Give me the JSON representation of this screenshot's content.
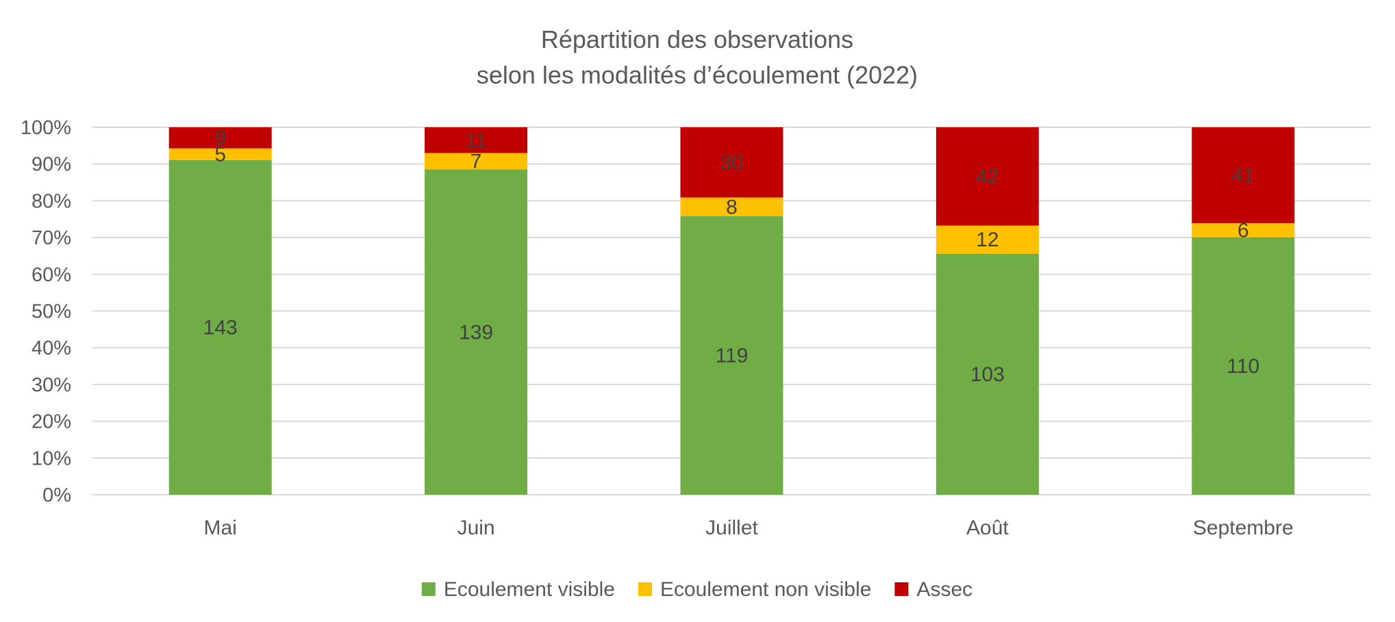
{
  "chart_data": {
    "type": "bar",
    "stacked": "percent",
    "title_lines": [
      "Répartition des observations",
      "selon les modalités d’écoulement (2022)"
    ],
    "categories": [
      "Mai",
      "Juin",
      "Juillet",
      "Août",
      "Septembre"
    ],
    "series": [
      {
        "name": "Ecoulement visible",
        "color": "#70ad47",
        "values": [
          143,
          139,
          119,
          103,
          110
        ]
      },
      {
        "name": "Ecoulement non visible",
        "color": "#ffc000",
        "values": [
          5,
          7,
          8,
          12,
          6
        ]
      },
      {
        "name": "Assec",
        "color": "#c00000",
        "values": [
          9,
          11,
          30,
          42,
          41
        ]
      }
    ],
    "yticks": [
      "0%",
      "10%",
      "20%",
      "30%",
      "40%",
      "50%",
      "60%",
      "70%",
      "80%",
      "90%",
      "100%"
    ],
    "ylim": [
      0,
      100
    ],
    "grid": true,
    "legend_position": "bottom"
  }
}
